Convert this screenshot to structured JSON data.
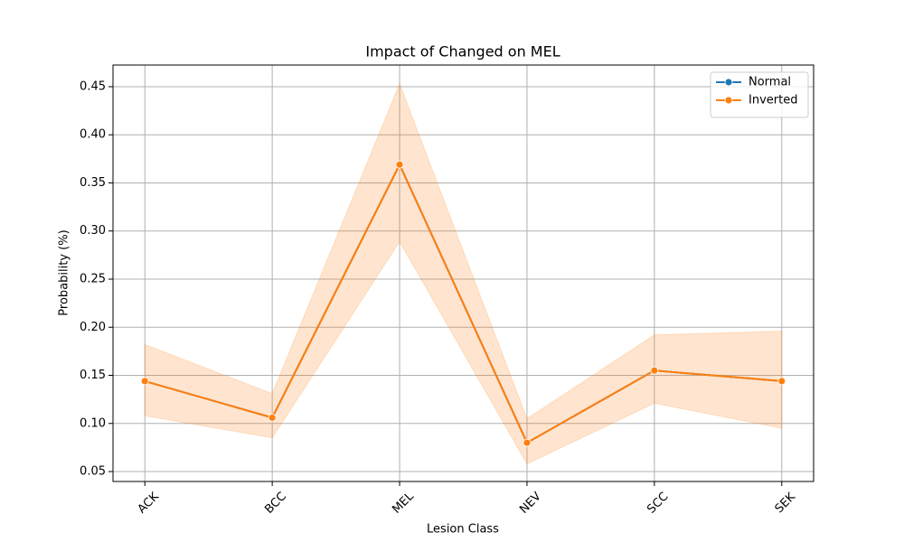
{
  "chart_data": {
    "type": "line",
    "title": "Impact of Changed on MEL",
    "x_label": "Lesion Class",
    "y_label": "Probability (%)",
    "categories": [
      "ACK",
      "BCC",
      "MEL",
      "NEV",
      "SCC",
      "SEK"
    ],
    "series": [
      {
        "name": "Normal",
        "color": "#1f77b4",
        "values": [
          0.144,
          0.106,
          0.369,
          0.08,
          0.155,
          0.144
        ]
      },
      {
        "name": "Inverted",
        "color": "#ff7f0e",
        "values": [
          0.144,
          0.106,
          0.369,
          0.08,
          0.155,
          0.144
        ],
        "lower": [
          0.108,
          0.085,
          0.289,
          0.058,
          0.121,
          0.095
        ],
        "upper": [
          0.182,
          0.131,
          0.453,
          0.105,
          0.192,
          0.196
        ]
      }
    ],
    "ylim": [
      0.0397,
      0.4725
    ],
    "yticks": [
      {
        "value": 0.05,
        "label": "0.05"
      },
      {
        "value": 0.1,
        "label": "0.10"
      },
      {
        "value": 0.15,
        "label": "0.15"
      },
      {
        "value": 0.2,
        "label": "0.20"
      },
      {
        "value": 0.25,
        "label": "0.25"
      },
      {
        "value": 0.3,
        "label": "0.30"
      },
      {
        "value": 0.35,
        "label": "0.35"
      },
      {
        "value": 0.4,
        "label": "0.40"
      },
      {
        "value": 0.45,
        "label": "0.45"
      }
    ],
    "grid": true,
    "legend": "upper right"
  }
}
